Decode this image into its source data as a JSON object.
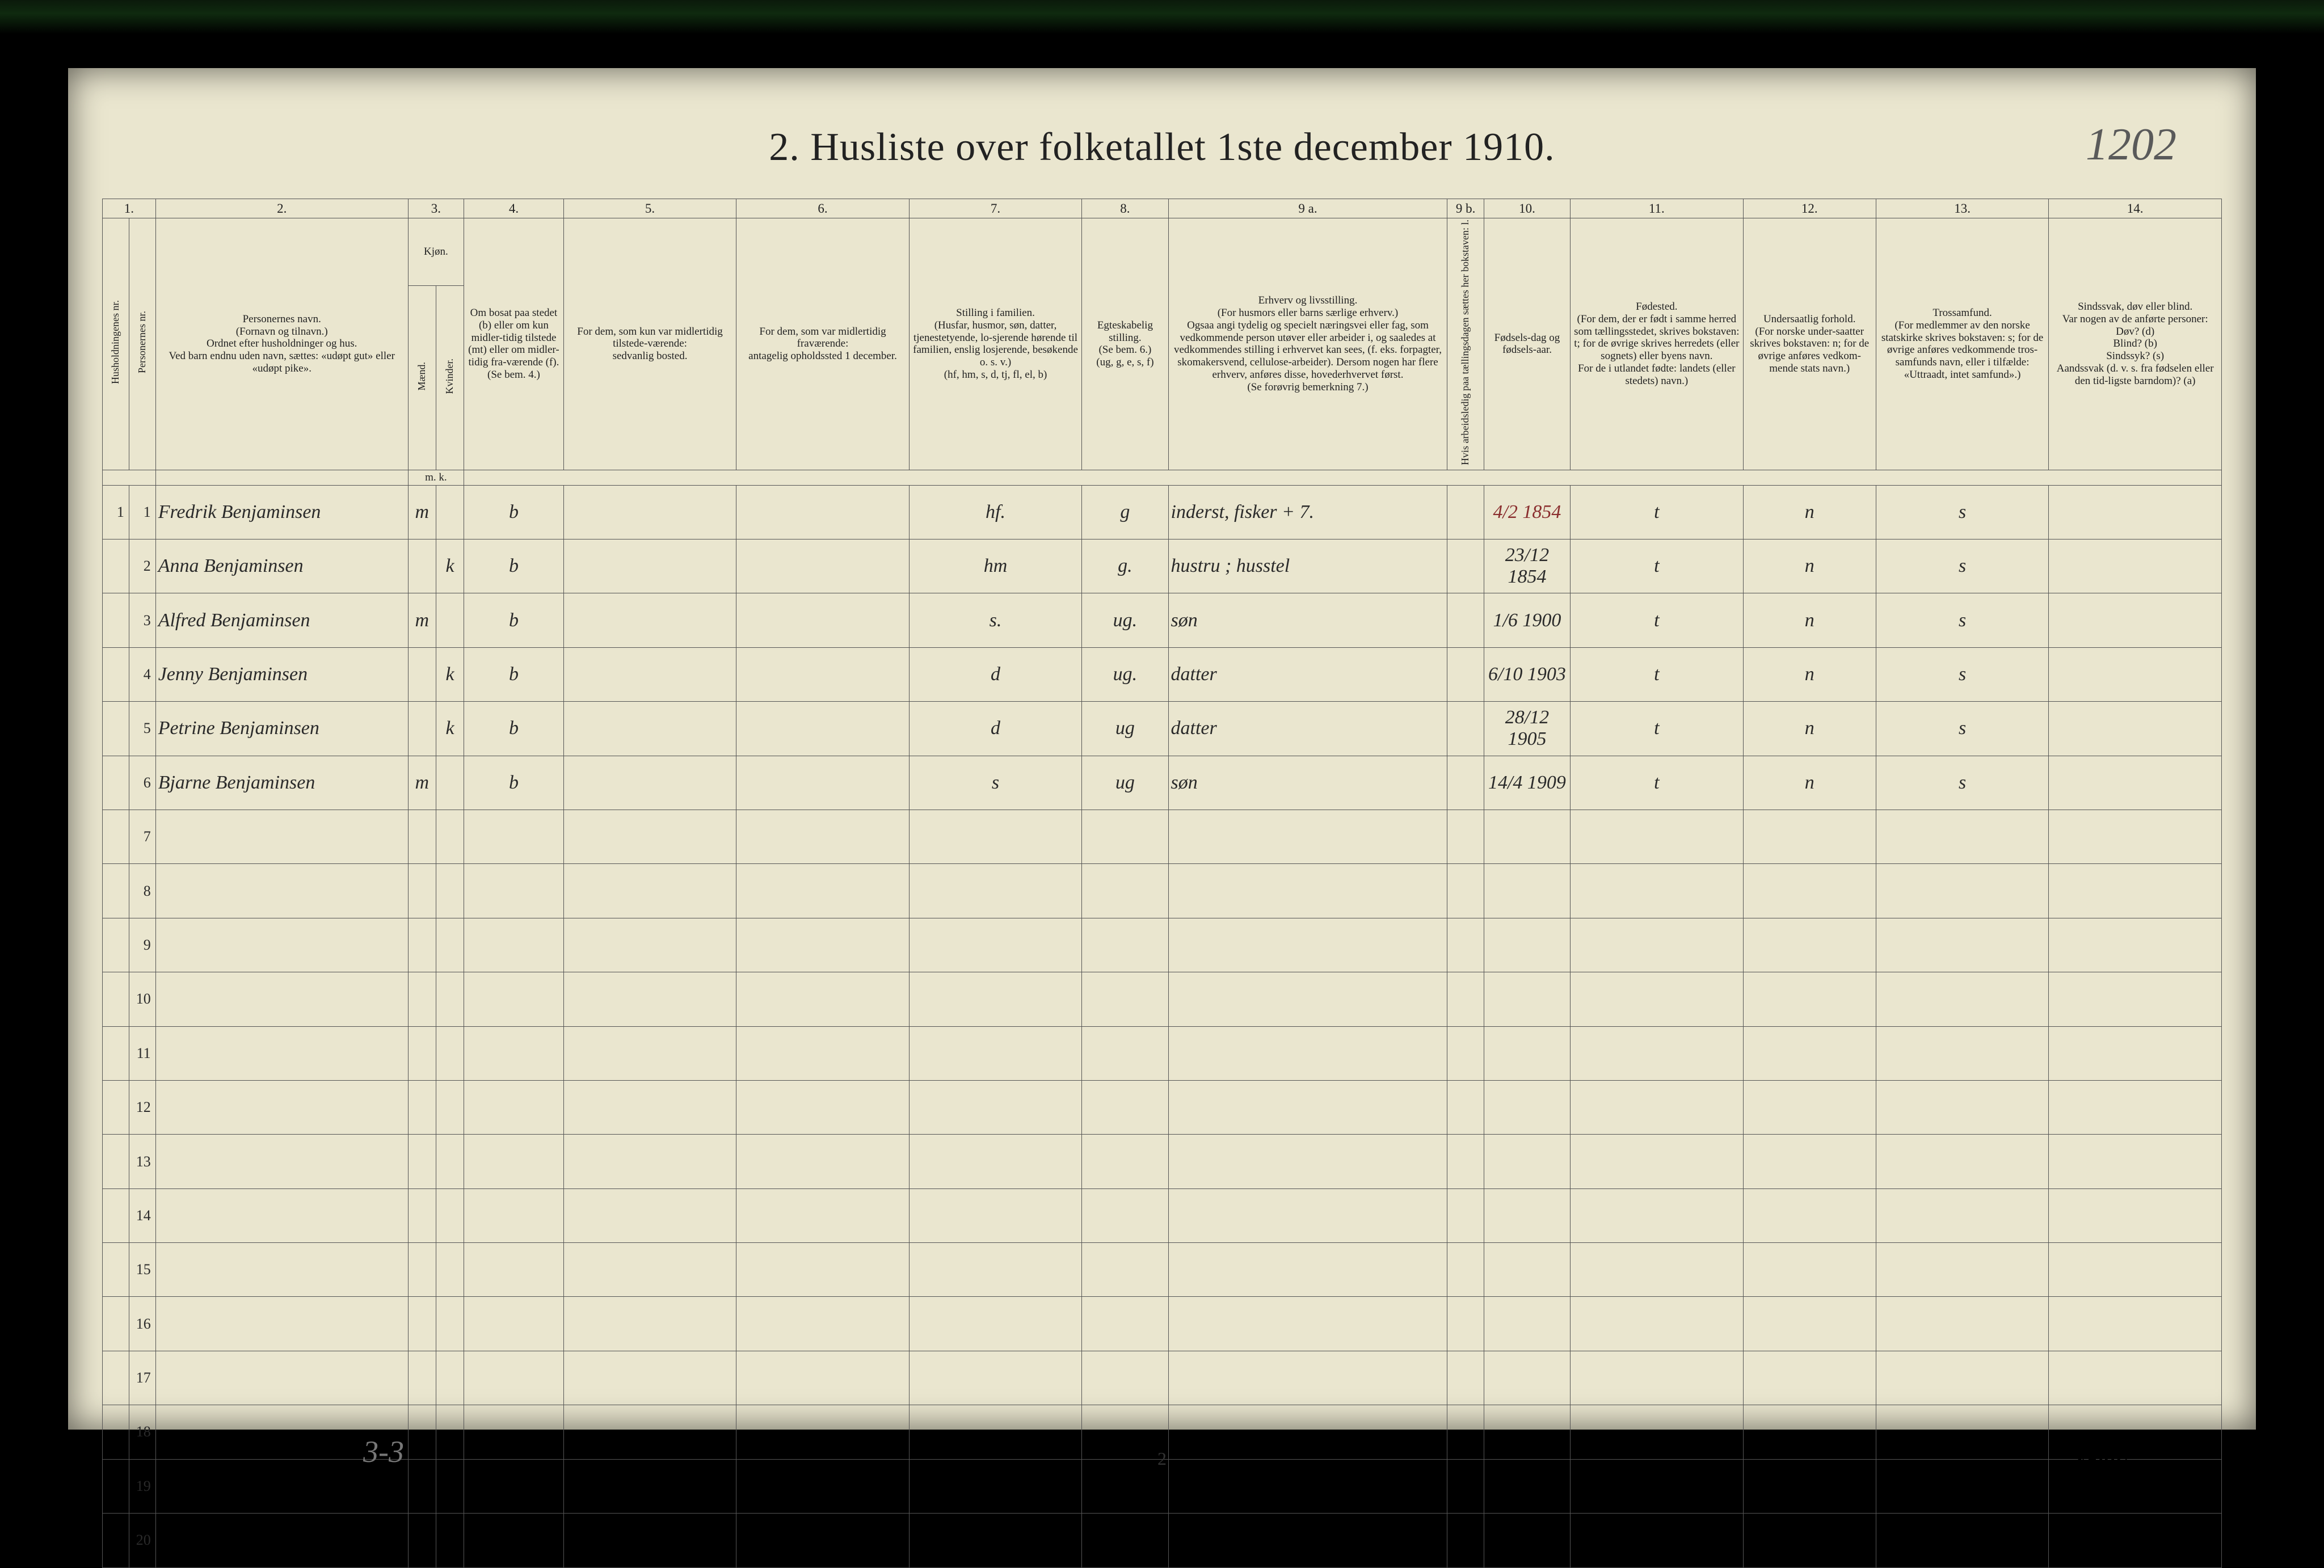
{
  "title": "2.  Husliste over folketallet 1ste december 1910.",
  "page_code": "1202",
  "footer_page": "2",
  "footer_turn": "Vend!",
  "tally": "3-3",
  "background_color": "#eae6cf",
  "border_color": "#555555",
  "header": {
    "nums": [
      "1.",
      "",
      "2.",
      "3.",
      "",
      "4.",
      "5.",
      "6.",
      "7.",
      "8.",
      "9 a.",
      "9 b.",
      "10.",
      "11.",
      "12.",
      "13.",
      "14."
    ],
    "c1": {
      "v1": "Husholdningenes nr.",
      "v2": "Personernes nr."
    },
    "c2": "Personernes navn.\n(Fornavn og tilnavn.)\nOrdnet efter husholdninger og hus.\nVed barn endnu uden navn, sættes: «udøpt gut» eller «udøpt pike».",
    "c3": {
      "top": "Kjøn.",
      "m": "Mænd.",
      "k": "Kvinder.",
      "mk": "m.  k."
    },
    "c4": "Om bosat paa stedet (b) eller om kun midler-tidig tilstede (mt) eller om midler-tidig fra-værende (f).\n(Se bem. 4.)",
    "c5": "For dem, som kun var midlertidig tilstede-værende:\nsedvanlig bosted.",
    "c6": "For dem, som var midlertidig fraværende:\nantagelig opholdssted 1 december.",
    "c7": "Stilling i familien.\n(Husfar, husmor, søn, datter, tjenestetyende, lo-sjerende hørende til familien, enslig losjerende, besøkende o. s. v.)\n(hf, hm, s, d, tj, fl, el, b)",
    "c8": "Egteskabelig stilling.\n(Se bem. 6.)\n(ug, g, e, s, f)",
    "c9a": "Erhverv og livsstilling.\n(For husmors eller barns særlige erhverv.)\nOgsaa angi tydelig og specielt næringsvei eller fag, som vedkommende person utøver eller arbeider i, og saaledes at vedkommendes stilling i erhvervet kan sees, (f. eks. forpagter, skomakersvend, cellulose-arbeider). Dersom nogen har flere erhverv, anføres disse, hovederhvervet først.\n(Se forøvrig bemerkning 7.)",
    "c9b": "Hvis arbeidsledig paa tællingsdagen sættes her bokstaven: l.",
    "c10": "Fødsels-dag og fødsels-aar.",
    "c11": "Fødested.\n(For dem, der er født i samme herred som tællingsstedet, skrives bokstaven: t; for de øvrige skrives herredets (eller sognets) eller byens navn.\nFor de i utlandet fødte: landets (eller stedets) navn.)",
    "c12": "Undersaatlig forhold.\n(For norske under-saatter skrives bokstaven: n; for de øvrige anføres vedkom-mende stats navn.)",
    "c13": "Trossamfund.\n(For medlemmer av den norske statskirke skrives bokstaven: s; for de øvrige anføres vedkommende tros-samfunds navn, eller i tilfælde: «Uttraadt, intet samfund».)",
    "c14": "Sindssvak, døv eller blind.\nVar nogen av de anførte personer:\nDøv?     (d)\nBlind?   (b)\nSindssyk? (s)\nAandssvak (d. v. s. fra fødselen eller den tid-ligste barndom)? (a)"
  },
  "rows": [
    {
      "hh": "1",
      "pn": "1",
      "name": "Fredrik Benjaminsen",
      "m": "m",
      "k": "",
      "bs": "b",
      "c5": "",
      "c6": "",
      "fam": "hf.",
      "eg": "g",
      "erh": "inderst, fisker + 7.",
      "l": "",
      "dob": "4/2 1854",
      "dob_red": true,
      "fst": "t",
      "und": "n",
      "tro": "s",
      "c14": ""
    },
    {
      "hh": "",
      "pn": "2",
      "name": "Anna Benjaminsen",
      "m": "",
      "k": "k",
      "bs": "b",
      "c5": "",
      "c6": "",
      "fam": "hm",
      "eg": "g.",
      "erh": "hustru ; husstel",
      "l": "",
      "dob": "23/12 1854",
      "dob_red": false,
      "fst": "t",
      "und": "n",
      "tro": "s",
      "c14": ""
    },
    {
      "hh": "",
      "pn": "3",
      "name": "Alfred Benjaminsen",
      "m": "m",
      "k": "",
      "bs": "b",
      "c5": "",
      "c6": "",
      "fam": "s.",
      "eg": "ug.",
      "erh": "søn",
      "l": "",
      "dob": "1/6 1900",
      "dob_red": false,
      "fst": "t",
      "und": "n",
      "tro": "s",
      "c14": ""
    },
    {
      "hh": "",
      "pn": "4",
      "name": "Jenny Benjaminsen",
      "m": "",
      "k": "k",
      "bs": "b",
      "c5": "",
      "c6": "",
      "fam": "d",
      "eg": "ug.",
      "erh": "datter",
      "l": "",
      "dob": "6/10 1903",
      "dob_red": false,
      "fst": "t",
      "und": "n",
      "tro": "s",
      "c14": ""
    },
    {
      "hh": "",
      "pn": "5",
      "name": "Petrine Benjaminsen",
      "m": "",
      "k": "k",
      "bs": "b",
      "c5": "",
      "c6": "",
      "fam": "d",
      "eg": "ug",
      "erh": "datter",
      "l": "",
      "dob": "28/12 1905",
      "dob_red": false,
      "fst": "t",
      "und": "n",
      "tro": "s",
      "c14": ""
    },
    {
      "hh": "",
      "pn": "6",
      "name": "Bjarne Benjaminsen",
      "m": "m",
      "k": "",
      "bs": "b",
      "c5": "",
      "c6": "",
      "fam": "s",
      "eg": "ug",
      "erh": "søn",
      "l": "",
      "dob": "14/4 1909",
      "dob_red": false,
      "fst": "t",
      "und": "n",
      "tro": "s",
      "c14": ""
    }
  ],
  "empty_rows": [
    "7",
    "8",
    "9",
    "10",
    "11",
    "12",
    "13",
    "14",
    "15",
    "16",
    "17",
    "18",
    "19",
    "20"
  ]
}
